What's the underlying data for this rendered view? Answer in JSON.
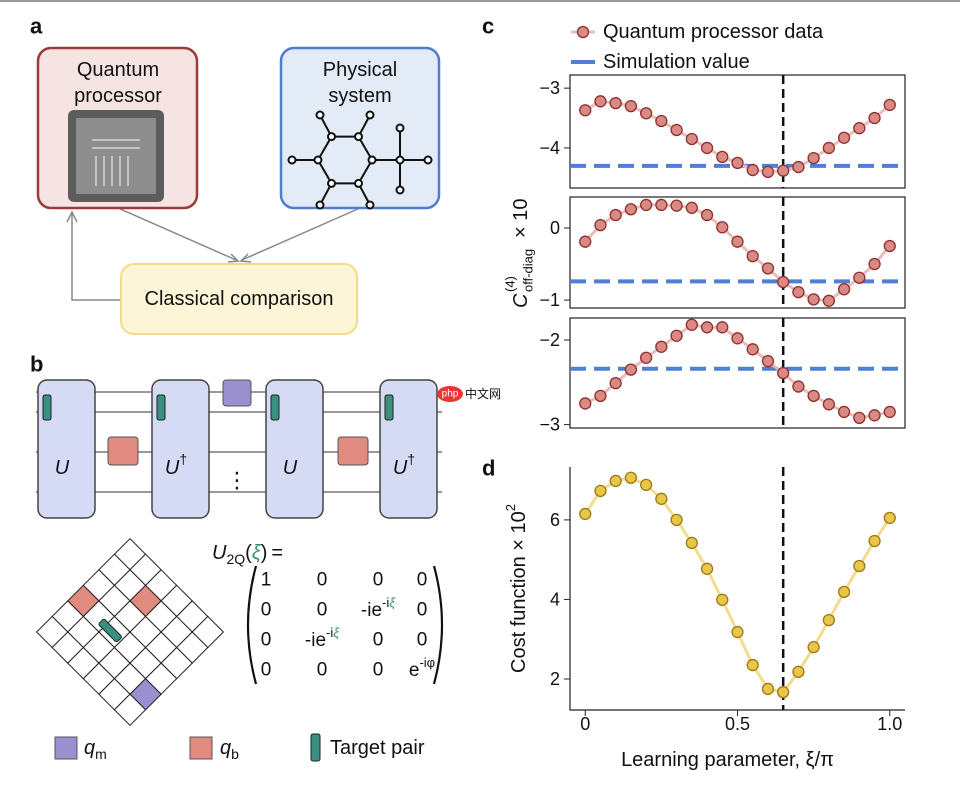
{
  "panels": {
    "a": "a",
    "b": "b",
    "c": "c",
    "d": "d"
  },
  "panel_a": {
    "processor": [
      "Quantum",
      "processor"
    ],
    "system": [
      "Physical",
      "system"
    ],
    "comparison": "Classical comparison"
  },
  "panel_b": {
    "gates": [
      {
        "base": "U"
      },
      {
        "base": "U",
        "sup": "†"
      },
      {
        "base": "U"
      },
      {
        "base": "U",
        "sup": "†"
      }
    ],
    "ellipsis": "⋮",
    "lhs": {
      "base": "U",
      "sub": "2Q",
      "open": "(",
      "arg": "ξ",
      "close": ")",
      "equals": "="
    },
    "matrix": [
      [
        "1",
        "0",
        "0",
        "0"
      ],
      [
        "0",
        "0",
        {
          "base": "-ie",
          "sup": "-i",
          "sup_var": "ξ"
        },
        "0"
      ],
      [
        "0",
        {
          "base": "-ie",
          "sup": "-i",
          "sup_var": "ξ"
        },
        "0",
        "0"
      ],
      [
        "0",
        "0",
        "0",
        {
          "base": "e",
          "sup": "-iφ"
        }
      ]
    ],
    "legend": [
      {
        "base": "q",
        "sub": "m"
      },
      {
        "base": "q",
        "sub": "b"
      },
      {
        "text": "Target pair"
      }
    ]
  },
  "watermark": {
    "logo": "php",
    "text": "中文网"
  },
  "chart_data": [
    {
      "type": "line",
      "x": [
        0,
        0.05,
        0.1,
        0.15,
        0.2,
        0.25,
        0.3,
        0.35,
        0.4,
        0.45,
        0.5,
        0.55,
        0.6,
        0.65,
        0.7,
        0.75,
        0.8,
        0.85,
        0.9,
        0.95,
        1.0
      ],
      "series": [
        {
          "name": "Quantum processor data",
          "color": "#d98a84",
          "edge_color": "#8e2f2b",
          "line_color": "#ebbcb8",
          "values": [
            -3.37,
            -3.22,
            -3.25,
            -3.3,
            -3.42,
            -3.55,
            -3.7,
            -3.85,
            -4.0,
            -4.15,
            -4.25,
            -4.37,
            -4.4,
            -4.38,
            -4.32,
            -4.17,
            -4.0,
            -3.83,
            -3.67,
            -3.5,
            -3.28
          ]
        }
      ],
      "simulation": {
        "name": "Simulation value",
        "value": -4.3,
        "color": "#4f7fd6"
      },
      "vline": 0.65,
      "xlim": [
        -0.05,
        1.05
      ],
      "ylim": [
        -4.67,
        -2.78
      ],
      "yticks": [
        {
          "value": -3,
          "label": "−3"
        },
        {
          "value": -4,
          "label": "−4"
        }
      ]
    },
    {
      "type": "line",
      "x": [
        0,
        0.05,
        0.1,
        0.15,
        0.2,
        0.25,
        0.3,
        0.35,
        0.4,
        0.45,
        0.5,
        0.55,
        0.6,
        0.65,
        0.7,
        0.75,
        0.8,
        0.85,
        0.9,
        0.95,
        1.0
      ],
      "series": [
        {
          "color": "#d98a84",
          "edge_color": "#8e2f2b",
          "line_color": "#ebbcb8",
          "values": [
            -0.19,
            0.04,
            0.18,
            0.26,
            0.32,
            0.32,
            0.31,
            0.28,
            0.18,
            0.01,
            -0.19,
            -0.39,
            -0.56,
            -0.75,
            -0.89,
            -0.99,
            -1.01,
            -0.85,
            -0.69,
            -0.5,
            -0.25
          ]
        }
      ],
      "simulation": {
        "value": -0.74,
        "color": "#4f7fd6"
      },
      "vline": 0.65,
      "xlim": [
        -0.05,
        1.05
      ],
      "ylim": [
        -1.11,
        0.43
      ],
      "yticks": [
        0,
        {
          "value": -1,
          "label": "−1"
        }
      ],
      "ylabel": {
        "base": "C",
        "sup": "(4)",
        "sub": "off-diag",
        "suffix": "× 10"
      }
    },
    {
      "type": "line",
      "x": [
        0,
        0.05,
        0.1,
        0.15,
        0.2,
        0.25,
        0.3,
        0.35,
        0.4,
        0.45,
        0.5,
        0.55,
        0.6,
        0.65,
        0.7,
        0.75,
        0.8,
        0.85,
        0.9,
        0.95,
        1.0
      ],
      "series": [
        {
          "color": "#d98a84",
          "edge_color": "#8e2f2b",
          "line_color": "#ebbcb8",
          "values": [
            -2.75,
            -2.66,
            -2.51,
            -2.35,
            -2.21,
            -2.08,
            -1.95,
            -1.82,
            -1.85,
            -1.85,
            -1.98,
            -2.11,
            -2.25,
            -2.39,
            -2.55,
            -2.66,
            -2.76,
            -2.85,
            -2.92,
            -2.89,
            -2.85
          ]
        }
      ],
      "simulation": {
        "value": -2.34,
        "color": "#4f7fd6"
      },
      "vline": 0.65,
      "xlim": [
        -0.05,
        1.05
      ],
      "ylim": [
        -3.04,
        -1.74
      ],
      "yticks": [
        {
          "value": -2,
          "label": "−2"
        },
        {
          "value": -3,
          "label": "−3"
        }
      ]
    },
    {
      "type": "line",
      "x": [
        0,
        0.05,
        0.1,
        0.15,
        0.2,
        0.25,
        0.3,
        0.35,
        0.4,
        0.45,
        0.5,
        0.55,
        0.6,
        0.65,
        0.7,
        0.75,
        0.8,
        0.85,
        0.9,
        0.95,
        1.0
      ],
      "series": [
        {
          "color": "#e9c64a",
          "edge_color": "#9b7a14",
          "line_color": "#f3dc8e",
          "values": [
            6.15,
            6.73,
            6.98,
            7.06,
            6.88,
            6.53,
            6.0,
            5.42,
            4.77,
            3.99,
            3.18,
            2.35,
            1.75,
            1.67,
            2.18,
            2.8,
            3.48,
            4.19,
            4.84,
            5.47,
            6.05
          ]
        }
      ],
      "vline": 0.65,
      "xlim": [
        -0.05,
        1.05
      ],
      "ylim": [
        1.22,
        7.33
      ],
      "yticks": [
        2,
        4,
        6
      ],
      "xticks": [
        0,
        0.5,
        {
          "value": 1,
          "label": "1.0"
        }
      ],
      "xlabel": "Learning parameter, ξ/π",
      "ylabel": {
        "base": "Cost function × 10",
        "sup": "2"
      }
    }
  ]
}
